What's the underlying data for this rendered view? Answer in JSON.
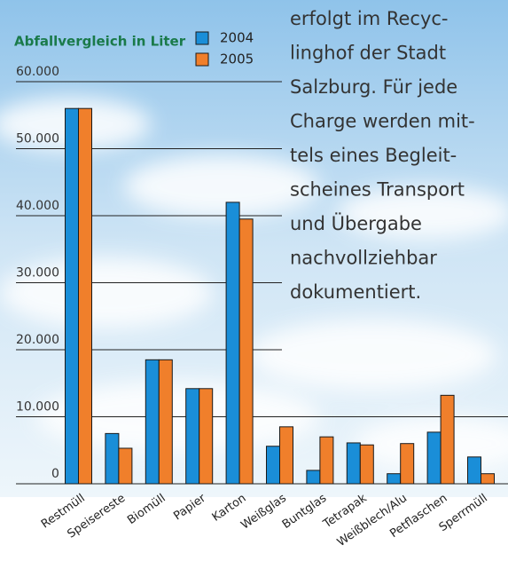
{
  "chart_data": {
    "type": "bar",
    "title": "Abfallvergleich in Liter",
    "categories": [
      "Restmüll",
      "Speisereste",
      "Biomüll",
      "Papier",
      "Karton",
      "Weißglas",
      "Buntglas",
      "Tetrapak",
      "Weißblech/Alu",
      "Petflaschen",
      "Sperrmüll"
    ],
    "series": [
      {
        "name": "2004",
        "color": "#1a8ed8",
        "values": [
          56000,
          7500,
          18500,
          14200,
          42000,
          5600,
          2000,
          6100,
          1500,
          7700,
          4000
        ]
      },
      {
        "name": "2005",
        "color": "#f07f2b",
        "values": [
          56000,
          5300,
          18500,
          14200,
          39500,
          8500,
          7000,
          5800,
          6000,
          13200,
          1500
        ]
      }
    ],
    "ylim": [
      0,
      60000
    ],
    "yticks": [
      0,
      {
        "value": 10000,
        "label": "10.000"
      },
      {
        "value": 20000,
        "label": "20.000"
      },
      {
        "value": 30000,
        "label": "30.000"
      },
      {
        "value": 40000,
        "label": "40.000"
      },
      {
        "value": 50000,
        "label": "50.000"
      },
      {
        "value": 60000,
        "label": "60.000"
      }
    ],
    "grid": true
  },
  "paragraph": {
    "lines": [
      "erfolgt im Recyc-",
      "linghof der Stadt",
      "Salzburg. Für jede",
      "Charge werden mit-",
      "tels eines Begleit-",
      "scheines Transport",
      "und Übergabe",
      "nachvollziehbar",
      "dokumentiert."
    ]
  }
}
